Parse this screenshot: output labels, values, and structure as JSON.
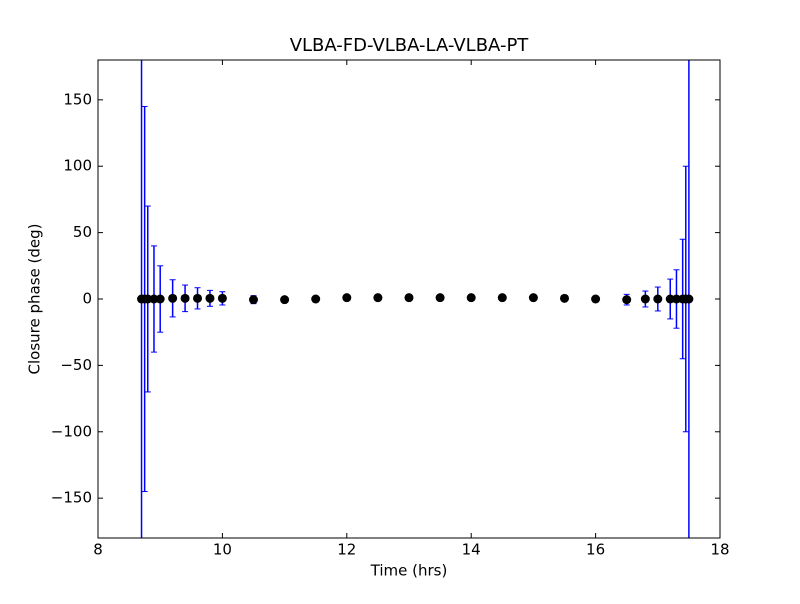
{
  "chart_data": {
    "type": "errorbar-scatter",
    "title": "VLBA-FD-VLBA-LA-VLBA-PT",
    "xlabel": "Time (hrs)",
    "ylabel": "Closure phase (deg)",
    "x": [
      8.7,
      8.75,
      8.8,
      8.9,
      9.0,
      9.2,
      9.4,
      9.6,
      9.8,
      10.0,
      10.5,
      11.0,
      11.5,
      12.0,
      12.5,
      13.0,
      13.5,
      14.0,
      14.5,
      15.0,
      15.5,
      16.0,
      16.5,
      16.8,
      17.0,
      17.2,
      17.3,
      17.4,
      17.45,
      17.5
    ],
    "values": [
      0,
      0,
      0,
      0,
      0,
      0.5,
      0.5,
      0.5,
      0.5,
      0.5,
      -0.5,
      -0.5,
      0,
      1,
      1,
      1,
      1,
      1,
      1,
      1,
      0.5,
      0,
      -0.5,
      0,
      0,
      0,
      0,
      0,
      0,
      0
    ],
    "errors": [
      250,
      145,
      70,
      40,
      25,
      14,
      10,
      8,
      6,
      5,
      3,
      2,
      1.5,
      1.2,
      1,
      1,
      1,
      1,
      1,
      1.2,
      1.5,
      2,
      4,
      6,
      9,
      15,
      22,
      45,
      100,
      250
    ],
    "marker_color": "#000000",
    "error_color": "#0000ff",
    "xlim": [
      8,
      18
    ],
    "ylim": [
      -180,
      180
    ],
    "xticks": [
      8,
      10,
      12,
      14,
      16,
      18
    ],
    "yticks": [
      {
        "value": -150,
        "label": "−150"
      },
      {
        "value": -100,
        "label": "−100"
      },
      {
        "value": -50,
        "label": "−50"
      },
      0,
      50,
      100,
      150
    ]
  }
}
